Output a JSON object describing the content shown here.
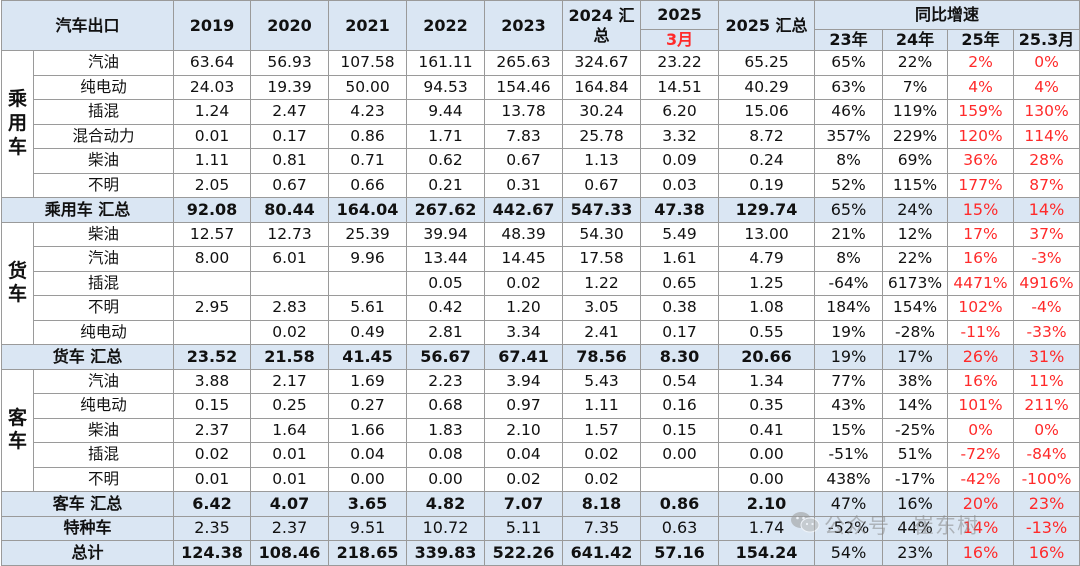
{
  "header": {
    "top_left": "汽车出口",
    "years": [
      "2019",
      "2020",
      "2021",
      "2022",
      "2023"
    ],
    "col_2024": "2024 汇总",
    "col_2025": "2025",
    "col_2025_month": "3月",
    "col_2025_sum": "2025 汇总",
    "yoy_group": "同比增速",
    "yoy_cols": [
      "23年",
      "24年",
      "25年",
      "25.3月"
    ]
  },
  "groups": [
    {
      "label": "乘用车",
      "rows": [
        {
          "name": "汽油",
          "v": [
            "63.64",
            "56.93",
            "107.58",
            "161.11",
            "265.63",
            "324.67",
            "23.22",
            "65.25"
          ],
          "p": [
            "65%",
            "22%",
            "2%",
            "0%"
          ]
        },
        {
          "name": "纯电动",
          "v": [
            "24.03",
            "19.39",
            "50.00",
            "94.53",
            "154.46",
            "164.84",
            "14.51",
            "40.29"
          ],
          "p": [
            "63%",
            "7%",
            "4%",
            "4%"
          ]
        },
        {
          "name": "插混",
          "v": [
            "1.24",
            "2.47",
            "4.23",
            "9.44",
            "13.78",
            "30.24",
            "6.20",
            "15.06"
          ],
          "p": [
            "46%",
            "119%",
            "159%",
            "130%"
          ]
        },
        {
          "name": "混合动力",
          "v": [
            "0.01",
            "0.17",
            "0.86",
            "1.71",
            "7.83",
            "25.78",
            "3.32",
            "8.72"
          ],
          "p": [
            "357%",
            "229%",
            "120%",
            "114%"
          ]
        },
        {
          "name": "柴油",
          "v": [
            "1.11",
            "0.81",
            "0.71",
            "0.62",
            "0.67",
            "1.13",
            "0.09",
            "0.24"
          ],
          "p": [
            "8%",
            "69%",
            "36%",
            "28%"
          ]
        },
        {
          "name": "不明",
          "v": [
            "2.05",
            "0.67",
            "0.66",
            "0.21",
            "0.31",
            "0.67",
            "0.03",
            "0.19"
          ],
          "p": [
            "52%",
            "115%",
            "177%",
            "87%"
          ]
        }
      ],
      "total": {
        "name": "乘用车 汇总",
        "v": [
          "92.08",
          "80.44",
          "164.04",
          "267.62",
          "442.67",
          "547.33",
          "47.38",
          "129.74"
        ],
        "p": [
          "65%",
          "24%",
          "15%",
          "14%"
        ]
      }
    },
    {
      "label": "货车",
      "rows": [
        {
          "name": "柴油",
          "v": [
            "12.57",
            "12.73",
            "25.39",
            "39.94",
            "48.39",
            "54.30",
            "5.49",
            "13.00"
          ],
          "p": [
            "21%",
            "12%",
            "17%",
            "37%"
          ]
        },
        {
          "name": "汽油",
          "v": [
            "8.00",
            "6.01",
            "9.96",
            "13.44",
            "14.45",
            "17.58",
            "1.61",
            "4.79"
          ],
          "p": [
            "8%",
            "22%",
            "16%",
            "-3%"
          ]
        },
        {
          "name": "插混",
          "v": [
            "",
            "",
            "",
            "0.05",
            "0.02",
            "1.22",
            "0.65",
            "1.25"
          ],
          "p": [
            "-64%",
            "6173%",
            "4471%",
            "4916%"
          ]
        },
        {
          "name": "不明",
          "v": [
            "2.95",
            "2.83",
            "5.61",
            "0.42",
            "1.20",
            "3.05",
            "0.38",
            "1.08"
          ],
          "p": [
            "184%",
            "154%",
            "102%",
            "-4%"
          ]
        },
        {
          "name": "纯电动",
          "v": [
            "",
            "0.02",
            "0.49",
            "2.81",
            "3.34",
            "2.41",
            "0.17",
            "0.55"
          ],
          "p": [
            "19%",
            "-28%",
            "-11%",
            "-33%"
          ]
        }
      ],
      "total": {
        "name": "货车 汇总",
        "v": [
          "23.52",
          "21.58",
          "41.45",
          "56.67",
          "67.41",
          "78.56",
          "8.30",
          "20.66"
        ],
        "p": [
          "19%",
          "17%",
          "26%",
          "31%"
        ]
      }
    },
    {
      "label": "客车",
      "rows": [
        {
          "name": "汽油",
          "v": [
            "3.88",
            "2.17",
            "1.69",
            "2.23",
            "3.94",
            "5.43",
            "0.54",
            "1.34"
          ],
          "p": [
            "77%",
            "38%",
            "16%",
            "11%"
          ]
        },
        {
          "name": "纯电动",
          "v": [
            "0.15",
            "0.25",
            "0.27",
            "0.68",
            "0.97",
            "1.11",
            "0.16",
            "0.35"
          ],
          "p": [
            "43%",
            "14%",
            "101%",
            "211%"
          ]
        },
        {
          "name": "柴油",
          "v": [
            "2.37",
            "1.64",
            "1.66",
            "1.83",
            "2.10",
            "1.57",
            "0.15",
            "0.41"
          ],
          "p": [
            "15%",
            "-25%",
            "0%",
            "0%"
          ]
        },
        {
          "name": "插混",
          "v": [
            "0.02",
            "0.01",
            "0.04",
            "0.08",
            "0.04",
            "0.02",
            "0.00",
            "0.00"
          ],
          "p": [
            "-51%",
            "51%",
            "-72%",
            "-84%"
          ]
        },
        {
          "name": "不明",
          "v": [
            "0.01",
            "0.01",
            "0.00",
            "0.00",
            "0.02",
            "0.02",
            "",
            "0.00"
          ],
          "p": [
            "438%",
            "-17%",
            "-42%",
            "-100%"
          ]
        }
      ],
      "total": {
        "name": "客车 汇总",
        "v": [
          "6.42",
          "4.07",
          "3.65",
          "4.82",
          "7.07",
          "8.18",
          "0.86",
          "2.10"
        ],
        "p": [
          "47%",
          "16%",
          "20%",
          "23%"
        ]
      }
    }
  ],
  "special": {
    "name": "特种车",
    "v": [
      "2.35",
      "2.37",
      "9.51",
      "10.72",
      "5.11",
      "7.35",
      "0.63",
      "1.74"
    ],
    "p": [
      "-52%",
      "44%",
      "14%",
      "-13%"
    ]
  },
  "grand_total": {
    "name": "总计",
    "v": [
      "124.38",
      "108.46",
      "218.65",
      "339.83",
      "522.26",
      "641.42",
      "57.16",
      "154.24"
    ],
    "p": [
      "54%",
      "23%",
      "16%",
      "16%"
    ]
  },
  "watermark": "公众号 · 崔东树",
  "colors": {
    "header_bg": "#dae6f3",
    "highlight": "#ff2a2a",
    "border": "#9a9a9a"
  }
}
